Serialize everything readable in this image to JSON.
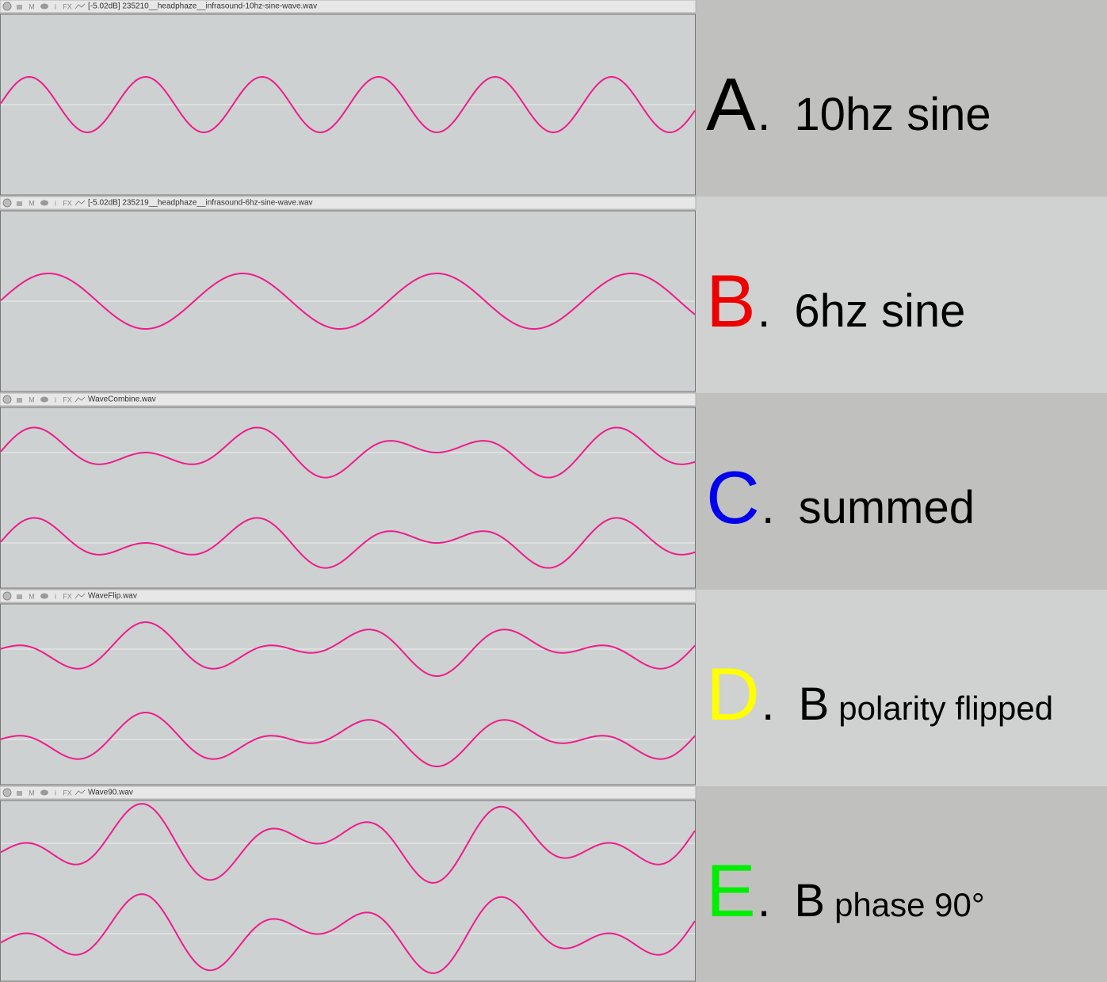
{
  "tracks": [
    {
      "header": {
        "buttons": [
          "M",
          "i",
          "FX"
        ],
        "file": "[-5.02dB] 235210__headphaze__infrasound-10hz-sine-wave.wav"
      },
      "caption": {
        "letter": "A",
        "letter_color": "#000000",
        "period": ".",
        "text": "10hz sine"
      }
    },
    {
      "header": {
        "buttons": [
          "M",
          "i",
          "FX"
        ],
        "file": "[-5.02dB] 235219__headphaze__infrasound-6hz-sine-wave.wav"
      },
      "caption": {
        "letter": "B",
        "letter_color": "#ee0000",
        "period": ".",
        "text": "6hz sine"
      }
    },
    {
      "header": {
        "buttons": [
          "M",
          "i",
          "FX"
        ],
        "file": "WaveCombine.wav"
      },
      "caption": {
        "letter": "C",
        "letter_color": "#0000ee",
        "period": ".",
        "text": "summed"
      }
    },
    {
      "header": {
        "buttons": [
          "M",
          "i",
          "FX"
        ],
        "file": "WaveFlip.wav"
      },
      "caption": {
        "letter": "D",
        "letter_color": "#ffff00",
        "period": ".",
        "text": "B",
        "note": "polarity flipped"
      }
    },
    {
      "header": {
        "buttons": [
          "M",
          "i",
          "FX"
        ],
        "file": "Wave90.wav"
      },
      "caption": {
        "letter": "E",
        "letter_color": "#00ee00",
        "period": ".",
        "text": "B",
        "note": "phase 90°"
      }
    }
  ]
}
